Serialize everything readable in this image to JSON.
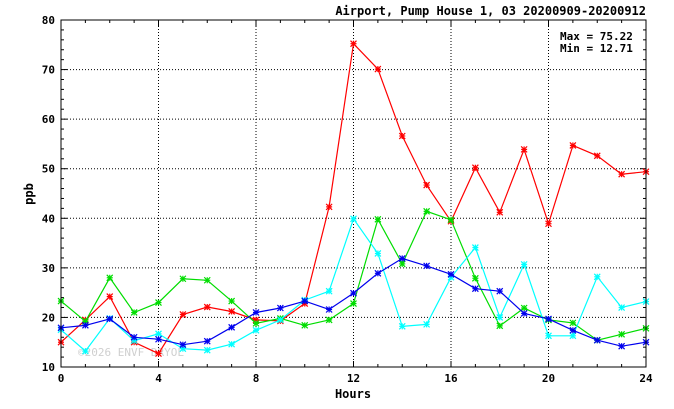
{
  "chart_data": {
    "type": "line",
    "title": "Airport, Pump House 1, 03 20200909-20200912",
    "xlabel": "Hours",
    "ylabel": "ppb",
    "xlim": [
      0,
      24
    ],
    "ylim": [
      10,
      80
    ],
    "xticks": [
      0,
      4,
      8,
      12,
      16,
      20,
      24
    ],
    "yticks": [
      10,
      20,
      30,
      40,
      50,
      60,
      70,
      80
    ],
    "grid": true,
    "annotations": [
      "Max = 75.22",
      "Min = 12.71"
    ],
    "watermark": "©2026 ENVF DRYOL",
    "x": [
      0,
      1,
      2,
      3,
      4,
      5,
      6,
      7,
      8,
      9,
      10,
      11,
      12,
      13,
      14,
      15,
      16,
      17,
      18,
      19,
      20,
      21,
      22,
      23,
      24
    ],
    "series": [
      {
        "color": "#ff0000",
        "values": [
          15.0,
          19.5,
          24.2,
          15.0,
          12.71,
          20.6,
          22.1,
          21.2,
          19.5,
          19.3,
          22.8,
          42.3,
          75.22,
          70.1,
          56.6,
          46.7,
          39.4,
          50.2,
          41.2,
          53.9,
          38.9,
          54.7,
          52.6,
          48.9,
          49.4
        ]
      },
      {
        "color": "#00dd00",
        "values": [
          23.3,
          19.2,
          28.0,
          21.0,
          23.0,
          27.8,
          27.5,
          23.3,
          18.8,
          19.8,
          18.4,
          19.5,
          22.8,
          39.8,
          30.8,
          41.4,
          39.7,
          27.9,
          18.3,
          21.9,
          19.5,
          18.9,
          15.4,
          16.6,
          17.8
        ]
      },
      {
        "color": "#00ffff",
        "values": [
          17.5,
          13.2,
          19.8,
          15.3,
          16.7,
          13.7,
          13.4,
          14.6,
          17.4,
          19.5,
          23.5,
          25.3,
          39.9,
          32.9,
          18.2,
          18.6,
          28.1,
          34.1,
          20.0,
          30.7,
          16.3,
          16.3,
          28.2,
          22.0,
          23.2
        ]
      },
      {
        "color": "#0000ee",
        "values": [
          17.9,
          18.4,
          19.7,
          16.0,
          15.6,
          14.5,
          15.2,
          18.0,
          21.0,
          21.9,
          23.3,
          21.6,
          24.9,
          28.9,
          31.9,
          30.4,
          28.7,
          25.8,
          25.3,
          20.8,
          19.7,
          17.4,
          15.4,
          14.2,
          15.0
        ]
      }
    ]
  }
}
